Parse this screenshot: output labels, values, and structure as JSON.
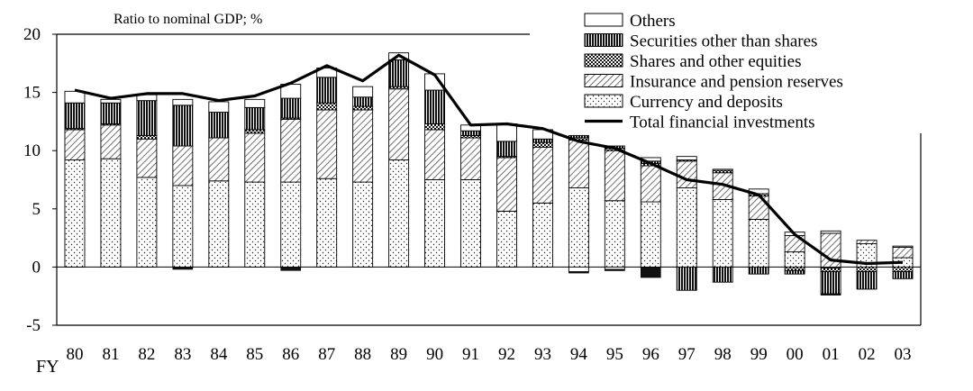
{
  "chart_data": {
    "type": "bar",
    "stacked": true,
    "ylabel": "Ratio to nominal GDP; %",
    "xlabel": "FY",
    "ylim": [
      -5,
      20
    ],
    "yticks": [
      20,
      15,
      10,
      5,
      0,
      -5
    ],
    "categories": [
      "80",
      "81",
      "82",
      "83",
      "84",
      "85",
      "86",
      "87",
      "88",
      "89",
      "90",
      "91",
      "92",
      "93",
      "94",
      "95",
      "96",
      "97",
      "98",
      "99",
      "00",
      "01",
      "02",
      "03"
    ],
    "series": [
      {
        "name": "Currency and deposits",
        "pattern": "dots",
        "values": [
          9.2,
          9.3,
          7.7,
          7.0,
          7.4,
          7.3,
          7.3,
          7.6,
          7.3,
          9.2,
          7.5,
          7.5,
          4.8,
          5.5,
          6.8,
          5.7,
          5.6,
          6.8,
          5.8,
          4.1,
          1.3,
          -0.1,
          2.0,
          0.8
        ]
      },
      {
        "name": "Insurance and pension reserves",
        "pattern": "hatch",
        "values": [
          2.6,
          2.9,
          3.3,
          3.4,
          3.7,
          4.2,
          5.4,
          5.9,
          6.2,
          6.1,
          4.3,
          3.6,
          4.6,
          4.8,
          4.1,
          4.3,
          3.1,
          2.3,
          2.3,
          2.0,
          1.4,
          2.9,
          0.3,
          0.9
        ]
      },
      {
        "name": "Shares and other equities",
        "pattern": "cross",
        "values": [
          0.1,
          0.1,
          0.3,
          0.0,
          0.0,
          0.3,
          0.1,
          0.6,
          0.3,
          0.2,
          0.5,
          0.2,
          0.1,
          0.4,
          0.2,
          0.2,
          0.2,
          0.1,
          0.2,
          0.2,
          -0.3,
          -0.3,
          -0.4,
          -0.4
        ]
      },
      {
        "name": "Securities other than shares",
        "pattern": "vlines",
        "values": [
          2.2,
          1.8,
          3.0,
          3.5,
          2.2,
          1.9,
          1.7,
          2.2,
          0.8,
          2.3,
          2.9,
          0.4,
          1.3,
          0.3,
          0.2,
          0.2,
          0.2,
          -2.0,
          -1.3,
          -0.6,
          -0.3,
          -1.9,
          -1.5,
          -0.6
        ]
      },
      {
        "name": "Others",
        "pattern": "blank",
        "values": [
          1.0,
          0.3,
          0.5,
          0.5,
          0.9,
          0.7,
          1.2,
          0.8,
          0.9,
          0.6,
          1.4,
          0.5,
          1.5,
          0.8,
          -0.4,
          -0.2,
          0.3,
          0.3,
          0.1,
          0.4,
          0.3,
          0.2,
          0.0,
          0.1
        ]
      }
    ],
    "negative_offsets": {
      "Currency and deposits": [
        0,
        0,
        0,
        0,
        0,
        0,
        0,
        0,
        0,
        0,
        0,
        0,
        0,
        0,
        0,
        0,
        0,
        0,
        0,
        0,
        0,
        0,
        0,
        0
      ]
    },
    "negative_extras": [
      0,
      0,
      0,
      -0.2,
      0,
      0,
      -0.3,
      0,
      0,
      0,
      0,
      0,
      0,
      0,
      -0.1,
      -0.1,
      -0.9,
      0,
      0,
      0,
      0,
      -0.1,
      0,
      0
    ],
    "line": {
      "name": "Total financial investments",
      "values": [
        15.2,
        14.5,
        14.9,
        14.9,
        14.3,
        14.7,
        15.8,
        17.3,
        16.0,
        18.2,
        16.5,
        12.2,
        12.3,
        11.9,
        10.8,
        10.2,
        8.9,
        7.5,
        7.1,
        6.2,
        2.8,
        0.6,
        0.3,
        0.4
      ]
    },
    "legend": {
      "position": "top-right",
      "entries": [
        {
          "label": "Others",
          "pattern": "blank"
        },
        {
          "label": "Securities other than shares",
          "pattern": "vlines"
        },
        {
          "label": "Shares and other equities",
          "pattern": "cross"
        },
        {
          "label": "Insurance and pension reserves",
          "pattern": "hatch"
        },
        {
          "label": "Currency and deposits",
          "pattern": "dots"
        },
        {
          "label": "Total financial investments",
          "pattern": "line"
        }
      ]
    }
  }
}
